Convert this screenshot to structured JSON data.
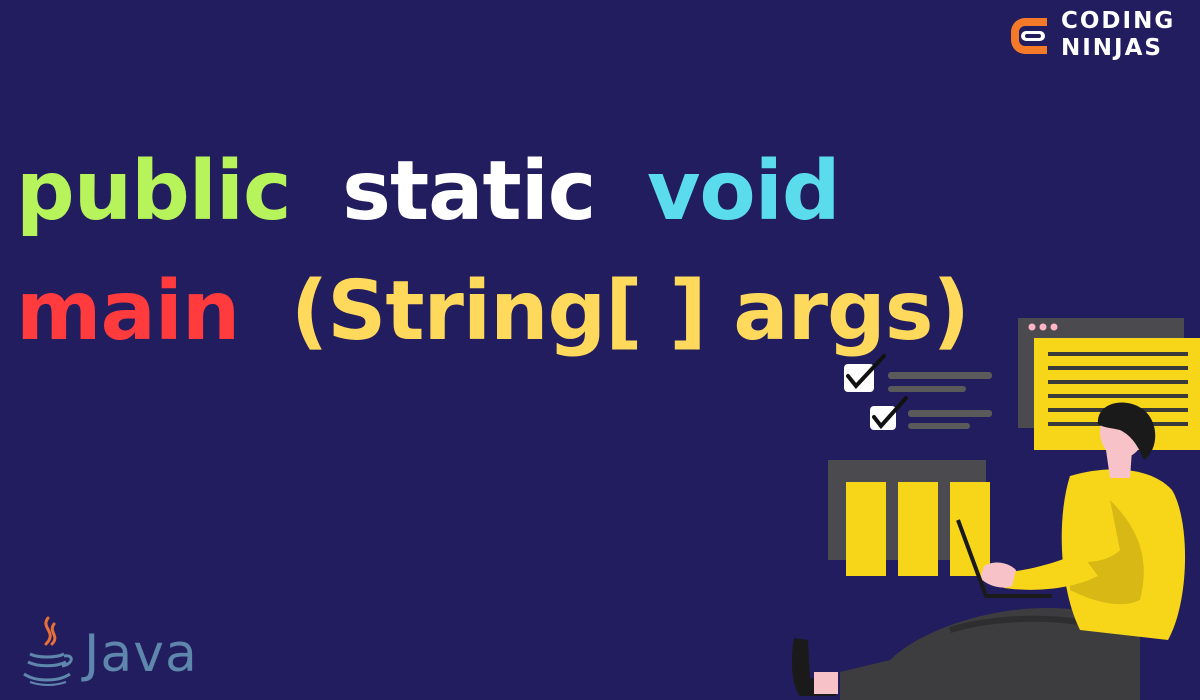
{
  "brand": {
    "line1": "CODING",
    "line2": "NINJAS",
    "mark_icon": "coding-ninjas-logo-icon",
    "colors": {
      "mark": "#f47a2a",
      "text": "#ffffff"
    }
  },
  "headline": {
    "line1": {
      "w1": "public",
      "w2": "static",
      "w3": "void"
    },
    "line2": {
      "w1": "main",
      "w2": "(String[ ] args)"
    }
  },
  "java": {
    "label": "Java",
    "icon": "java-cup-icon"
  },
  "illustration": {
    "icon": "developer-laptop-illustration"
  },
  "colors": {
    "background": "#221d5e",
    "public": "#b7f35a",
    "static": "#ffffff",
    "void": "#5bdcec",
    "main": "#ff3b3d",
    "signature": "#ffd95c",
    "accent_yellow": "#f7d619"
  }
}
